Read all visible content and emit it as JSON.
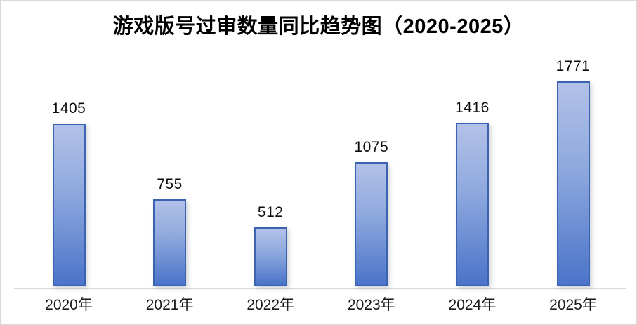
{
  "title": "游戏版号过审数量同比趋势图（2020-2025）",
  "chart_data": {
    "type": "bar",
    "title": "游戏版号过审数量同比趋势图（2020-2025）",
    "categories": [
      "2020年",
      "2021年",
      "2022年",
      "2023年",
      "2024年",
      "2025年"
    ],
    "values": [
      1405,
      755,
      512,
      1075,
      1416,
      1771
    ],
    "xlabel": "",
    "ylabel": "",
    "ylim": [
      0,
      1771
    ],
    "grid": false,
    "legend": false,
    "data_labels_shown": true,
    "colors": {
      "bar_gradient_top": "#b2c1e8",
      "bar_gradient_mid": "#8fa9de",
      "bar_gradient_bottom": "#4a74c9",
      "bar_border": "#3b63af",
      "axis_line": "#d8d8d8",
      "value_label": "#0d0d0d",
      "category_label": "#1a1a1a",
      "title": "#000000",
      "frame_border": "#d9d9d9",
      "background": "#ffffff"
    }
  }
}
